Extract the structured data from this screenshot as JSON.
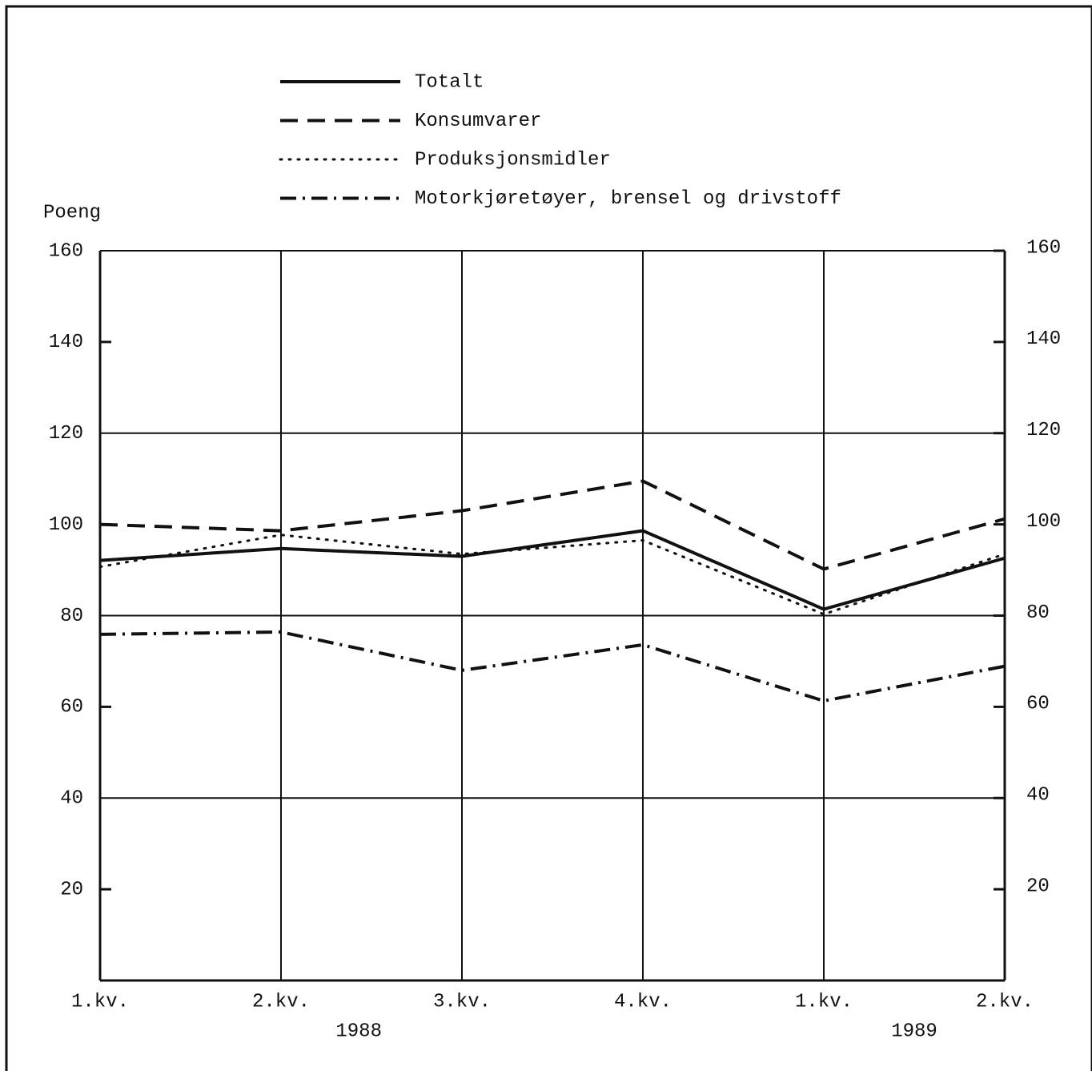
{
  "chart_data": {
    "type": "line",
    "y_label": "Poeng",
    "categories": [
      "1.kv.",
      "2.kv.",
      "3.kv.",
      "4.kv.",
      "1.kv.",
      "2.kv."
    ],
    "year_labels": [
      "1988",
      "1989"
    ],
    "series": [
      {
        "name": "Totalt",
        "color": "#111111",
        "style": "solid",
        "values": [
          92.1,
          94.7,
          93,
          98.6,
          81.4,
          92.6
        ]
      },
      {
        "name": "Konsumvarer",
        "color": "#111111",
        "style": "dashed",
        "values": [
          100,
          98.6,
          103,
          109.5,
          90.2,
          101.2
        ]
      },
      {
        "name": "Produksjonsmidler",
        "color": "#111111",
        "style": "dotted",
        "values": [
          90.7,
          97.7,
          93.5,
          96.5,
          80.3,
          93.5
        ]
      },
      {
        "name": "Motorkjøretøyer, brensel og drivstoff",
        "color": "#111111",
        "style": "dashdot",
        "values": [
          75.9,
          76.4,
          68,
          73.6,
          61.3,
          68.9
        ]
      }
    ],
    "ylim": [
      0,
      160
    ],
    "yticks": [
      20,
      40,
      60,
      80,
      100,
      120,
      140,
      160
    ],
    "y2lim": [
      0,
      160
    ],
    "y2ticks": [
      20,
      40,
      60,
      80,
      100,
      120,
      140,
      160
    ],
    "grid": true
  }
}
